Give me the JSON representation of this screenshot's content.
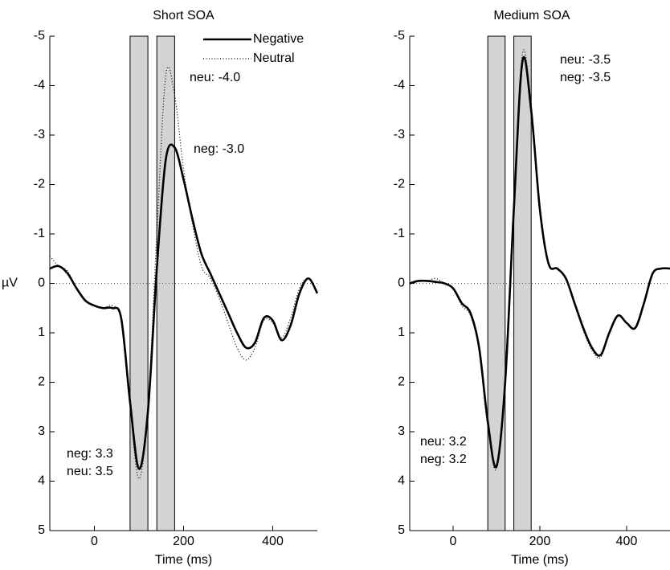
{
  "chart_data": [
    {
      "type": "line",
      "title": "Short SOA",
      "x_label": "Time (ms)",
      "y_label": "µV",
      "xlim": [
        -100,
        500
      ],
      "xticks": [
        0,
        200,
        400
      ],
      "ylim": [
        5,
        -5
      ],
      "yticks": [
        -5,
        -4,
        -3,
        -2,
        -1,
        0,
        1,
        2,
        3,
        4,
        5
      ],
      "windows": [
        [
          80,
          120
        ],
        [
          140,
          180
        ]
      ],
      "window_color": "#d3d3d3",
      "x": [
        -100,
        -80,
        -60,
        -40,
        -20,
        0,
        20,
        40,
        60,
        80,
        100,
        120,
        140,
        160,
        180,
        200,
        220,
        240,
        260,
        280,
        300,
        320,
        340,
        360,
        380,
        400,
        420,
        440,
        460,
        480,
        500
      ],
      "series": [
        {
          "name": "Negative",
          "color": "#000000",
          "style": "solid",
          "values": [
            -0.3,
            -0.35,
            -0.2,
            0.1,
            0.35,
            0.45,
            0.5,
            0.5,
            0.7,
            2.4,
            3.75,
            2.6,
            -0.3,
            -2.5,
            -2.75,
            -2.1,
            -1.3,
            -0.6,
            -0.2,
            0.2,
            0.6,
            1.0,
            1.3,
            1.2,
            0.7,
            0.75,
            1.15,
            0.85,
            0.2,
            -0.1,
            0.2
          ]
        },
        {
          "name": "Neutral",
          "color": "#000000",
          "style": "dotted",
          "values": [
            -0.55,
            -0.35,
            -0.25,
            0.1,
            0.35,
            0.45,
            0.5,
            0.45,
            0.75,
            2.5,
            3.95,
            2.5,
            -1.0,
            -4.2,
            -3.8,
            -2.3,
            -1.2,
            -0.35,
            -0.1,
            0.3,
            0.8,
            1.3,
            1.55,
            1.3,
            0.75,
            0.8,
            1.1,
            0.7,
            0.1,
            -0.1,
            0.2
          ]
        }
      ],
      "annotations": [
        "neu: -4.0",
        "neg: -3.0",
        "neg: 3.3",
        "neu: 3.5"
      ],
      "legend": "upper right"
    },
    {
      "type": "line",
      "title": "Medium SOA",
      "x_label": "Time (ms)",
      "xlim": [
        -100,
        500
      ],
      "xticks": [
        0,
        200,
        400
      ],
      "ylim": [
        5,
        -5
      ],
      "yticks": [
        -5,
        -4,
        -3,
        -2,
        -1,
        0,
        1,
        2,
        3,
        4,
        5
      ],
      "windows": [
        [
          80,
          120
        ],
        [
          140,
          180
        ]
      ],
      "window_color": "#d3d3d3",
      "x": [
        -100,
        -80,
        -60,
        -40,
        -20,
        0,
        20,
        40,
        60,
        80,
        100,
        120,
        140,
        160,
        180,
        200,
        220,
        240,
        260,
        280,
        300,
        320,
        340,
        360,
        380,
        400,
        420,
        440,
        460,
        480,
        500
      ],
      "series": [
        {
          "name": "Negative",
          "color": "#000000",
          "style": "solid",
          "values": [
            0.0,
            -0.05,
            -0.05,
            -0.03,
            0.0,
            0.1,
            0.4,
            0.6,
            1.3,
            2.8,
            3.7,
            2.0,
            -1.5,
            -4.5,
            -3.5,
            -1.5,
            -0.4,
            -0.3,
            -0.1,
            0.4,
            0.9,
            1.3,
            1.45,
            1.0,
            0.65,
            0.8,
            0.9,
            0.4,
            -0.2,
            -0.3,
            -0.3
          ]
        },
        {
          "name": "Neutral",
          "color": "#000000",
          "style": "dotted",
          "values": [
            0.0,
            -0.05,
            -0.05,
            -0.1,
            0.0,
            0.1,
            0.45,
            0.65,
            1.35,
            2.9,
            3.75,
            2.0,
            -1.6,
            -4.65,
            -3.6,
            -1.5,
            -0.4,
            -0.3,
            -0.1,
            0.4,
            0.95,
            1.35,
            1.5,
            1.0,
            0.65,
            0.8,
            0.9,
            0.4,
            -0.2,
            -0.3,
            -0.3
          ]
        }
      ],
      "annotations": [
        "neu: -3.5",
        "neg: -3.5",
        "neu: 3.2",
        "neg: 3.2"
      ]
    }
  ]
}
